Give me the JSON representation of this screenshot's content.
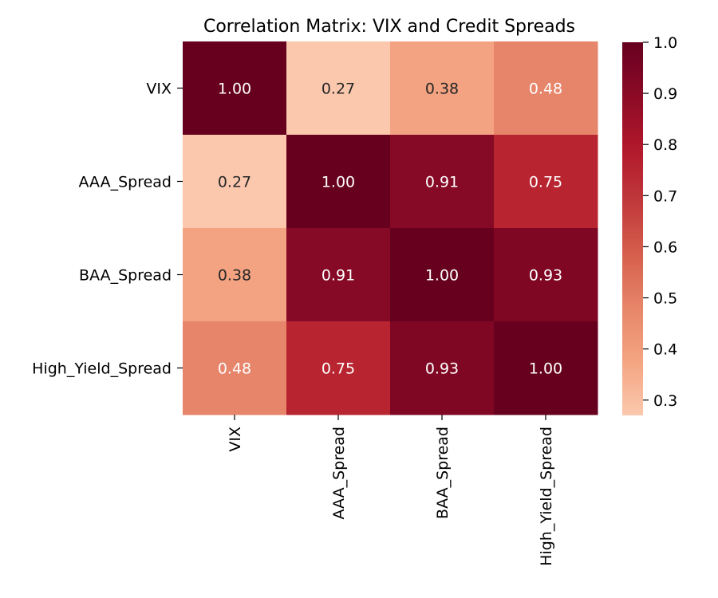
{
  "chart_data": {
    "type": "heatmap",
    "title": "Correlation Matrix: VIX and Credit Spreads",
    "row_labels": [
      "VIX",
      "AAA_Spread",
      "BAA_Spread",
      "High_Yield_Spread"
    ],
    "col_labels": [
      "VIX",
      "AAA_Spread",
      "BAA_Spread",
      "High_Yield_Spread"
    ],
    "matrix": [
      [
        1.0,
        0.27,
        0.38,
        0.48
      ],
      [
        0.27,
        1.0,
        0.91,
        0.75
      ],
      [
        0.38,
        0.91,
        1.0,
        0.93
      ],
      [
        0.48,
        0.75,
        0.93,
        1.0
      ]
    ],
    "value_format": "0.00",
    "colormap": "RdBu_r (warm half)",
    "color_stops": [
      "#fbc8ae",
      "#f4a582",
      "#e7866a",
      "#d6604d",
      "#c0393b",
      "#b2182b",
      "#8b0a26",
      "#67001f"
    ],
    "colorbar": {
      "min": 0.27,
      "max": 1.0,
      "ticks": [
        0.3,
        0.4,
        0.5,
        0.6,
        0.7,
        0.8,
        0.9,
        1.0
      ],
      "tick_labels": [
        "0.3",
        "0.4",
        "0.5",
        "0.6",
        "0.7",
        "0.8",
        "0.9",
        "1.0"
      ],
      "placement": "right"
    },
    "text_color_light": "#ffffff",
    "text_color_dark": "#262626",
    "grid": false
  }
}
